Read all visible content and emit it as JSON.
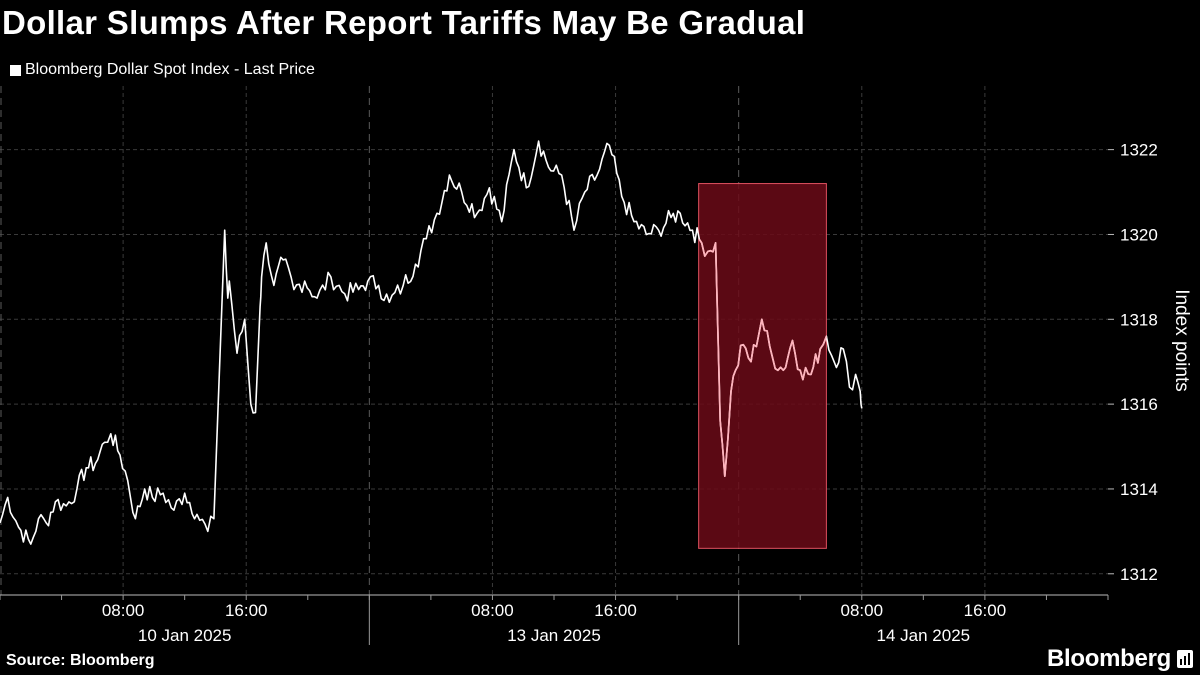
{
  "title": "Dollar Slumps After Report Tariffs May Be Gradual",
  "legend": "Bloomberg Dollar Spot Index - Last Price",
  "source": "Source: Bloomberg",
  "brand": "Bloomberg",
  "colors": {
    "background": "#000000",
    "line": "#ffffff",
    "highlight_fill": "#6b0a18",
    "highlight_stroke": "#e0505f",
    "highlight_line": "#ffb3bc"
  },
  "chart_data": {
    "type": "line",
    "title": "Dollar Slumps After Report Tariffs May Be Gradual",
    "ylabel": "Index points",
    "ylim": [
      1311.5,
      1323.5
    ],
    "yticks": [
      1312,
      1314,
      1316,
      1318,
      1320,
      1322
    ],
    "x_unit": "hours since 10 Jan 2025 00:00",
    "xlim": [
      0,
      72
    ],
    "xticks": [
      {
        "x": 8,
        "label": "08:00"
      },
      {
        "x": 16,
        "label": "16:00"
      },
      {
        "x": 32,
        "label": "08:00"
      },
      {
        "x": 40,
        "label": "16:00"
      },
      {
        "x": 56,
        "label": "08:00"
      },
      {
        "x": 64,
        "label": "16:00"
      }
    ],
    "day_labels": [
      {
        "x": 12,
        "label": "10 Jan 2025"
      },
      {
        "x": 36,
        "label": "13 Jan 2025"
      },
      {
        "x": 60,
        "label": "14 Jan 2025"
      }
    ],
    "day_boundaries": [
      24,
      48
    ],
    "highlight": {
      "x0": 45.4,
      "x1": 53.7,
      "y0": 1312.6,
      "y1": 1321.2
    },
    "series": [
      {
        "name": "Bloomberg Dollar Spot Index - Last Price",
        "x": [
          0,
          0.5,
          1.2,
          2.0,
          2.5,
          3.0,
          3.6,
          4.3,
          5.0,
          5.6,
          6.2,
          6.8,
          7.2,
          7.8,
          8.3,
          8.8,
          9.4,
          9.9,
          10.6,
          11.3,
          12.0,
          12.8,
          13.5,
          13.9,
          14.6,
          14.8,
          14.9,
          15.4,
          15.9,
          16.3,
          16.6,
          16.9,
          17.0,
          17.3,
          17.8,
          18.4,
          19.1,
          19.8,
          20.6,
          21.5,
          22.4,
          23.3,
          23.9,
          24.6,
          25.3,
          26.2,
          27.0,
          27.7,
          28.4,
          29.2,
          30.0,
          31.0,
          31.8,
          32.6,
          33.4,
          34.2,
          35.0,
          35.8,
          36.5,
          37.3,
          38.0,
          38.8,
          39.6,
          40.4,
          41.2,
          42.0,
          42.8,
          43.6,
          44.2,
          45.0,
          45.6,
          46.0,
          46.5,
          46.8,
          47.1,
          47.5,
          47.8,
          48.3,
          48.8,
          49.5,
          50.2,
          50.9,
          51.5,
          52.0,
          52.7,
          53.3,
          53.7,
          54.2,
          54.8,
          55.2,
          55.6,
          55.9,
          56.0
        ],
        "y": [
          1313.2,
          1313.8,
          1313.1,
          1312.7,
          1313.3,
          1313.2,
          1313.7,
          1313.6,
          1314.0,
          1314.5,
          1314.6,
          1315.1,
          1315.3,
          1314.8,
          1314.2,
          1313.3,
          1314.0,
          1313.8,
          1313.9,
          1313.5,
          1313.9,
          1313.4,
          1313.0,
          1313.3,
          1320.1,
          1318.5,
          1318.9,
          1317.2,
          1318.0,
          1316.0,
          1315.8,
          1318.3,
          1319.0,
          1319.8,
          1318.8,
          1319.4,
          1318.7,
          1318.9,
          1318.5,
          1319.0,
          1318.6,
          1318.7,
          1318.9,
          1318.8,
          1318.4,
          1318.8,
          1319.3,
          1319.9,
          1320.5,
          1321.4,
          1321.0,
          1320.5,
          1321.1,
          1320.3,
          1322.0,
          1321.1,
          1322.2,
          1321.5,
          1321.4,
          1320.1,
          1321.0,
          1321.4,
          1322.1,
          1320.9,
          1320.3,
          1320.0,
          1320.1,
          1320.4,
          1320.5,
          1320.1,
          1319.8,
          1319.6,
          1319.8,
          1315.6,
          1314.3,
          1316.3,
          1316.8,
          1317.4,
          1317.0,
          1318.0,
          1317.1,
          1316.8,
          1317.5,
          1316.8,
          1316.7,
          1317.3,
          1317.6,
          1317.0,
          1317.3,
          1316.4,
          1316.7,
          1316.3,
          1315.9
        ]
      }
    ]
  }
}
